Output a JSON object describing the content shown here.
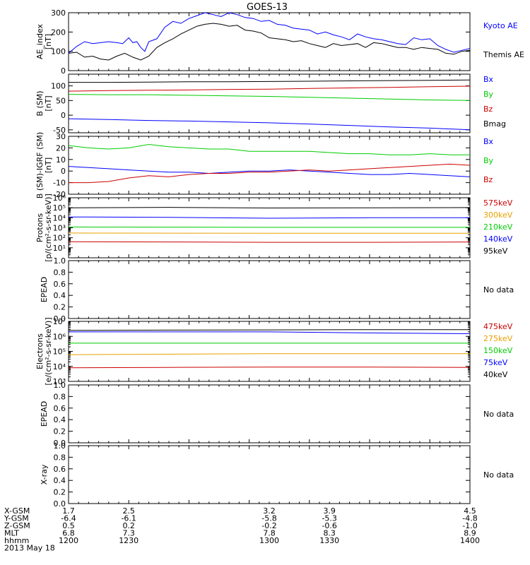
{
  "colors": {
    "blue": "#0000ff",
    "red": "#cc0000",
    "green": "#00cc00",
    "orange": "#e8a000",
    "black": "#000000"
  },
  "chart_data": {
    "type": "line",
    "title": "GOES-13",
    "x_axis": {
      "unit": "hhmm",
      "range": [
        1200,
        1400
      ],
      "ticks": [
        "1200",
        "1230",
        "1300",
        "1330",
        "1400"
      ]
    },
    "panels": [
      {
        "id": "ae",
        "ylabel": [
          "AE_index",
          "[nT]"
        ],
        "ylim": [
          0,
          300
        ],
        "yticks": [
          0,
          100,
          200,
          300
        ],
        "scale": "linear",
        "legend": [
          {
            "label": "Kyoto AE",
            "color": "#0000ff"
          },
          {
            "label": "Themis AE",
            "color": "#000000"
          }
        ],
        "series": [
          {
            "name": "Kyoto AE",
            "color": "#0000ff",
            "x": [
              1200,
              1204,
              1208,
              1212,
              1216,
              1220,
              1224,
              1227,
              1230,
              1232,
              1234,
              1236,
              1238,
              1240,
              1244,
              1248,
              1252,
              1256,
              1260,
              1264,
              1268,
              1272,
              1276,
              1280,
              1284,
              1288,
              1292,
              1296,
              1300,
              1304,
              1308,
              1312,
              1316,
              1320,
              1324,
              1328,
              1332,
              1336,
              1340,
              1344,
              1348,
              1352,
              1356,
              1360,
              1364,
              1368,
              1372,
              1376,
              1380,
              1384,
              1388,
              1392,
              1396,
              1400
            ],
            "y": [
              90,
              125,
              150,
              140,
              145,
              150,
              145,
              140,
              170,
              145,
              150,
              120,
              100,
              150,
              165,
              225,
              255,
              245,
              270,
              285,
              300,
              290,
              280,
              300,
              290,
              275,
              270,
              255,
              260,
              240,
              235,
              220,
              215,
              210,
              190,
              200,
              185,
              175,
              160,
              190,
              175,
              165,
              160,
              150,
              140,
              135,
              170,
              160,
              165,
              130,
              110,
              95,
              105,
              115
            ]
          },
          {
            "name": "Themis AE",
            "color": "#000000",
            "x": [
              1200,
              1204,
              1208,
              1212,
              1216,
              1220,
              1224,
              1228,
              1232,
              1236,
              1240,
              1244,
              1248,
              1252,
              1256,
              1260,
              1264,
              1268,
              1272,
              1276,
              1280,
              1284,
              1288,
              1292,
              1296,
              1300,
              1304,
              1308,
              1312,
              1316,
              1320,
              1324,
              1328,
              1332,
              1336,
              1340,
              1344,
              1348,
              1352,
              1356,
              1360,
              1364,
              1368,
              1372,
              1376,
              1380,
              1384,
              1388,
              1392,
              1396,
              1400
            ],
            "y": [
              90,
              95,
              70,
              75,
              60,
              55,
              75,
              90,
              70,
              55,
              75,
              120,
              145,
              165,
              190,
              210,
              230,
              240,
              245,
              240,
              230,
              235,
              210,
              205,
              195,
              170,
              165,
              160,
              150,
              155,
              140,
              130,
              120,
              140,
              130,
              135,
              140,
              120,
              145,
              140,
              130,
              120,
              120,
              110,
              120,
              115,
              110,
              90,
              85,
              100,
              105
            ]
          }
        ]
      },
      {
        "id": "b-sm",
        "ylabel": [
          "B (SM)",
          "[nT]"
        ],
        "ylim": [
          -60,
          140
        ],
        "yticks": [
          -50,
          0,
          50,
          100
        ],
        "scale": "linear",
        "legend": [
          {
            "label": "Bx",
            "color": "#0000ff"
          },
          {
            "label": "By",
            "color": "#00cc00"
          },
          {
            "label": "Bz",
            "color": "#cc0000"
          },
          {
            "label": "Bmag",
            "color": "#000000"
          }
        ],
        "series": [
          {
            "name": "Bx",
            "color": "#0000ff",
            "x": [
              1200,
              1220,
              1240,
              1260,
              1280,
              1300,
              1320,
              1340,
              1360,
              1380,
              1400
            ],
            "y": [
              -12,
              -15,
              -18,
              -20,
              -23,
              -26,
              -30,
              -35,
              -40,
              -44,
              -50
            ]
          },
          {
            "name": "By",
            "color": "#00cc00",
            "x": [
              1200,
              1220,
              1240,
              1260,
              1280,
              1300,
              1320,
              1340,
              1360,
              1380,
              1400
            ],
            "y": [
              71,
              70,
              70,
              68,
              66,
              64,
              61,
              58,
              55,
              52,
              50
            ]
          },
          {
            "name": "Bz",
            "color": "#cc0000",
            "x": [
              1200,
              1220,
              1240,
              1260,
              1280,
              1300,
              1320,
              1340,
              1360,
              1380,
              1400
            ],
            "y": [
              82,
              84,
              85,
              86,
              88,
              89,
              91,
              93,
              95,
              97,
              99
            ]
          },
          {
            "name": "Bmag",
            "color": "#000000",
            "x": [
              1200,
              1220,
              1240,
              1260,
              1280,
              1300,
              1320,
              1340,
              1360,
              1380,
              1400
            ],
            "y": [
              112,
              112,
              113,
              114,
              114,
              115,
              116,
              117,
              118,
              119,
              120
            ]
          }
        ]
      },
      {
        "id": "b-sm-igrf",
        "ylabel": [
          "B (SM)-IGRF (SM)",
          "[nT]"
        ],
        "ylim": [
          -20,
          30
        ],
        "yticks": [
          -20,
          -10,
          0,
          10,
          20,
          30
        ],
        "scale": "linear",
        "legend": [
          {
            "label": "Bx",
            "color": "#0000ff"
          },
          {
            "label": "By",
            "color": "#00cc00"
          },
          {
            "label": "Bz",
            "color": "#cc0000"
          }
        ],
        "series": [
          {
            "name": "Bx",
            "color": "#0000ff",
            "x": [
              1200,
              1210,
              1220,
              1230,
              1240,
              1250,
              1260,
              1270,
              1280,
              1290,
              1300,
              1310,
              1320,
              1330,
              1340,
              1350,
              1360,
              1370,
              1380,
              1390,
              1400
            ],
            "y": [
              4,
              3,
              2,
              1,
              0,
              -1,
              -1,
              -2,
              -1,
              0,
              0,
              1,
              0,
              -1,
              -2,
              -3,
              -3,
              -2,
              -3,
              -4,
              -5
            ]
          },
          {
            "name": "By",
            "color": "#00cc00",
            "x": [
              1200,
              1210,
              1220,
              1230,
              1240,
              1250,
              1260,
              1270,
              1280,
              1290,
              1300,
              1310,
              1320,
              1330,
              1340,
              1350,
              1360,
              1370,
              1380,
              1390,
              1400
            ],
            "y": [
              22,
              20,
              19,
              20,
              23,
              21,
              20,
              19,
              19,
              17,
              17,
              17,
              17,
              16,
              15,
              15,
              14,
              14,
              15,
              14,
              14
            ]
          },
          {
            "name": "Bz",
            "color": "#cc0000",
            "x": [
              1200,
              1210,
              1220,
              1230,
              1240,
              1250,
              1260,
              1270,
              1280,
              1290,
              1300,
              1310,
              1320,
              1330,
              1340,
              1350,
              1360,
              1370,
              1380,
              1390,
              1400
            ],
            "y": [
              -10,
              -10,
              -9,
              -6,
              -4,
              -5,
              -3,
              -2,
              -2,
              -1,
              -1,
              0,
              1,
              0,
              1,
              2,
              3,
              4,
              5,
              6,
              5
            ]
          }
        ]
      },
      {
        "id": "protons",
        "ylabel": [
          "Protons",
          "[p/(cm²-s-sr-keV)]"
        ],
        "ylim": [
          1,
          1000000
        ],
        "scale": "log",
        "yticks_labels": [
          "10¹",
          "10²",
          "10³",
          "10⁴",
          "10⁵",
          "10⁶"
        ],
        "legend": [
          {
            "label": "575keV",
            "color": "#cc0000"
          },
          {
            "label": "300keV",
            "color": "#e8a000"
          },
          {
            "label": "210keV",
            "color": "#00cc00"
          },
          {
            "label": "140keV",
            "color": "#0000ff"
          },
          {
            "label": "95keV",
            "color": "#000000"
          }
        ],
        "series": [
          {
            "name": "95keV",
            "color": "#000000",
            "x": [
              1200,
              1250,
              1300,
              1350,
              1400
            ],
            "y": [
              100000,
              110000,
              95000,
              100000,
              105000
            ]
          },
          {
            "name": "140keV",
            "color": "#0000ff",
            "x": [
              1200,
              1250,
              1300,
              1350,
              1400
            ],
            "y": [
              12000,
              11000,
              9000,
              10000,
              10000
            ]
          },
          {
            "name": "210keV",
            "color": "#00cc00",
            "x": [
              1200,
              1250,
              1300,
              1350,
              1400
            ],
            "y": [
              1200,
              1150,
              1100,
              1100,
              1100
            ]
          },
          {
            "name": "300keV",
            "color": "#e8a000",
            "x": [
              1200,
              1250,
              1300,
              1350,
              1400
            ],
            "y": [
              300,
              290,
              280,
              280,
              280
            ]
          },
          {
            "name": "575keV",
            "color": "#cc0000",
            "x": [
              1200,
              1250,
              1300,
              1350,
              1400
            ],
            "y": [
              40,
              38,
              35,
              35,
              38
            ]
          }
        ]
      },
      {
        "id": "epead-1",
        "ylabel": [
          "EPEAD"
        ],
        "ylim": [
          0,
          1
        ],
        "yticks": [
          "0.0",
          "0.2",
          "0.4",
          "0.6",
          "0.8",
          "1.0"
        ],
        "scale": "linear",
        "no_data": "No data",
        "series": []
      },
      {
        "id": "electrons",
        "ylabel": [
          "Electrons",
          "[e/(cm²-s-sr-keV)]"
        ],
        "ylim": [
          1000,
          10000000
        ],
        "scale": "log",
        "yticks_labels": [
          "10³",
          "10⁴",
          "10⁵",
          "10⁶",
          "10⁷"
        ],
        "legend": [
          {
            "label": "475keV",
            "color": "#cc0000"
          },
          {
            "label": "275keV",
            "color": "#e8a000"
          },
          {
            "label": "150keV",
            "color": "#00cc00"
          },
          {
            "label": "75keV",
            "color": "#0000ff"
          },
          {
            "label": "40keV",
            "color": "#000000"
          }
        ],
        "series": [
          {
            "name": "40keV",
            "color": "#000000",
            "x": [
              1200,
              1250,
              1300,
              1350,
              1400
            ],
            "y": [
              2500000,
              2600000,
              2700000,
              2800000,
              2800000
            ]
          },
          {
            "name": "75keV",
            "color": "#0000ff",
            "x": [
              1200,
              1250,
              1300,
              1350,
              1400
            ],
            "y": [
              2000000,
              2000000,
              2000000,
              1700000,
              1500000
            ]
          },
          {
            "name": "150keV",
            "color": "#00cc00",
            "x": [
              1200,
              1250,
              1300,
              1350,
              1400
            ],
            "y": [
              350000,
              350000,
              350000,
              350000,
              350000
            ]
          },
          {
            "name": "275keV",
            "color": "#e8a000",
            "x": [
              1200,
              1250,
              1300,
              1350,
              1400
            ],
            "y": [
              60000,
              65000,
              70000,
              70000,
              70000
            ]
          },
          {
            "name": "475keV",
            "color": "#cc0000",
            "x": [
              1200,
              1250,
              1300,
              1350,
              1400
            ],
            "y": [
              8000,
              8500,
              9000,
              9000,
              8500
            ]
          }
        ]
      },
      {
        "id": "epead-2",
        "ylabel": [
          "EPEAD"
        ],
        "ylim": [
          0,
          1
        ],
        "yticks": [
          "0.0",
          "0.2",
          "0.4",
          "0.6",
          "0.8",
          "1.0"
        ],
        "scale": "linear",
        "no_data": "No data",
        "series": []
      },
      {
        "id": "xray",
        "ylabel": [
          "X-ray"
        ],
        "ylim": [
          0,
          1
        ],
        "yticks": [
          "0.0",
          "0.2",
          "0.4",
          "0.6",
          "0.8",
          "1.0"
        ],
        "scale": "linear",
        "no_data": "No data",
        "series": []
      }
    ],
    "ephemeris": {
      "rows": [
        {
          "label": "X-GSM",
          "values": [
            "1.7",
            "2.5",
            "3.2",
            "3.9",
            "4.5"
          ]
        },
        {
          "label": "Y-GSM",
          "values": [
            "-6.4",
            "-6.1",
            "-5.8",
            "-5.3",
            "-4.8"
          ]
        },
        {
          "label": "Z-GSM",
          "values": [
            "0.5",
            "0.2",
            "-0.2",
            "-0.6",
            "-1.0"
          ]
        },
        {
          "label": "MLT",
          "values": [
            "6.8",
            "7.3",
            "7.8",
            "8.3",
            "8.9"
          ]
        },
        {
          "label": "hhmm",
          "values": [
            "1200",
            "1230",
            "1300",
            "1330",
            "1400"
          ]
        }
      ],
      "date": "2013 May 18"
    }
  }
}
